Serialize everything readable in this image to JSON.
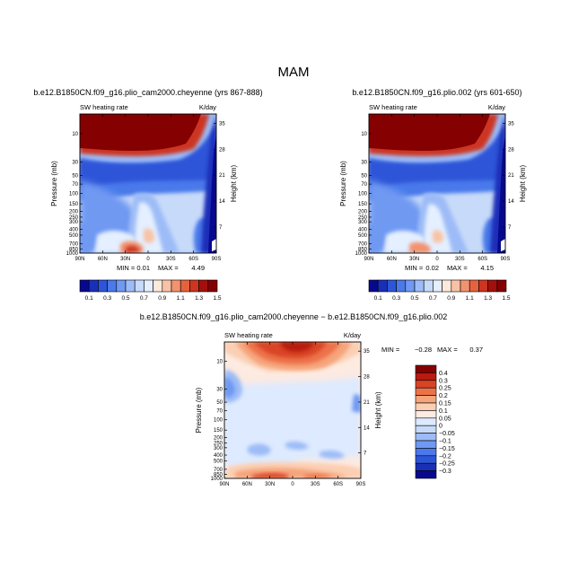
{
  "title": "MAM",
  "colors": {
    "abs_scale": [
      "#08088f",
      "#1a2fb8",
      "#2d55d8",
      "#4a79ea",
      "#6f99f2",
      "#9dbcf7",
      "#c7daf9",
      "#e4efff",
      "#fde9dc",
      "#f9c2a6",
      "#f2936f",
      "#e5623f",
      "#cc3520",
      "#a3100c",
      "#850000"
    ],
    "diff_scale": [
      "#08088f",
      "#1a2fb8",
      "#2d55d8",
      "#4a79ea",
      "#6f99f2",
      "#9dbcf7",
      "#c7daf9",
      "#ddeaff",
      "#fdeae0",
      "#fbcfb3",
      "#f6a47b",
      "#ec7248",
      "#d94426",
      "#b81b11",
      "#850000"
    ],
    "black": "#000000"
  },
  "chart_data": [
    {
      "type": "heatmap",
      "panel": "top-left",
      "title": "b.e12.B1850CN.f09_g16.plio_cam2000.cheyenne (yrs 867-888)",
      "left_label": "SW heating rate",
      "right_label": "K/day",
      "xlabel": "",
      "ylabel": "Pressure (mb)",
      "ylabel_right": "Height (km)",
      "x_ticks": [
        "90N",
        "60N",
        "30N",
        "0",
        "30S",
        "60S",
        "90S"
      ],
      "y_ticks": [
        "10",
        "30",
        "50",
        "70",
        "100",
        "150",
        "200",
        "250",
        "300",
        "400",
        "500",
        "700",
        "850",
        "1000"
      ],
      "height_ticks": [
        "35",
        "28",
        "21",
        "14",
        "7"
      ],
      "min_label": "MIN =",
      "min_value": "0.01",
      "max_label": "MAX =",
      "max_value": "4.49",
      "levels": [
        "0.1",
        "0.3",
        "0.5",
        "0.7",
        "0.9",
        "1.1",
        "1.3",
        "1.5"
      ]
    },
    {
      "type": "heatmap",
      "panel": "top-right",
      "title": "b.e12.B1850CN.f09_g16.plio.002 (yrs 601-650)",
      "left_label": "SW heating rate",
      "right_label": "K/day",
      "xlabel": "",
      "ylabel": "Pressure (mb)",
      "ylabel_right": "Height (km)",
      "x_ticks": [
        "90N",
        "60N",
        "30N",
        "0",
        "30S",
        "60S",
        "90S"
      ],
      "y_ticks": [
        "10",
        "30",
        "50",
        "70",
        "100",
        "150",
        "200",
        "250",
        "300",
        "400",
        "500",
        "700",
        "850",
        "1000"
      ],
      "height_ticks": [
        "35",
        "28",
        "21",
        "14",
        "7"
      ],
      "min_label": "MIN =",
      "min_value": "0.02",
      "max_label": "MAX =",
      "max_value": "4.15",
      "levels": [
        "0.1",
        "0.3",
        "0.5",
        "0.7",
        "0.9",
        "1.1",
        "1.3",
        "1.5"
      ]
    },
    {
      "type": "heatmap",
      "panel": "bottom",
      "title": "b.e12.B1850CN.f09_g16.plio_cam2000.cheyenne − b.e12.B1850CN.f09_g16.plio.002",
      "left_label": "SW heating rate",
      "right_label": "K/day",
      "xlabel": "",
      "ylabel": "Pressure (mb)",
      "ylabel_right": "Height (km)",
      "x_ticks": [
        "90N",
        "60N",
        "30N",
        "0",
        "30S",
        "60S",
        "90S"
      ],
      "y_ticks": [
        "10",
        "30",
        "50",
        "70",
        "100",
        "150",
        "200",
        "250",
        "300",
        "400",
        "500",
        "700",
        "850",
        "1000"
      ],
      "height_ticks": [
        "35",
        "28",
        "21",
        "14",
        "7"
      ],
      "min_label": "MIN =",
      "min_value": "−0.28",
      "max_label": "MAX =",
      "max_value": "0.37",
      "levels": [
        "0.4",
        "0.3",
        "0.25",
        "0.2",
        "0.15",
        "0.1",
        "0.05",
        "0",
        "−0.05",
        "−0.1",
        "−0.15",
        "−0.2",
        "−0.25",
        "−0.3",
        "−0.4"
      ]
    }
  ]
}
